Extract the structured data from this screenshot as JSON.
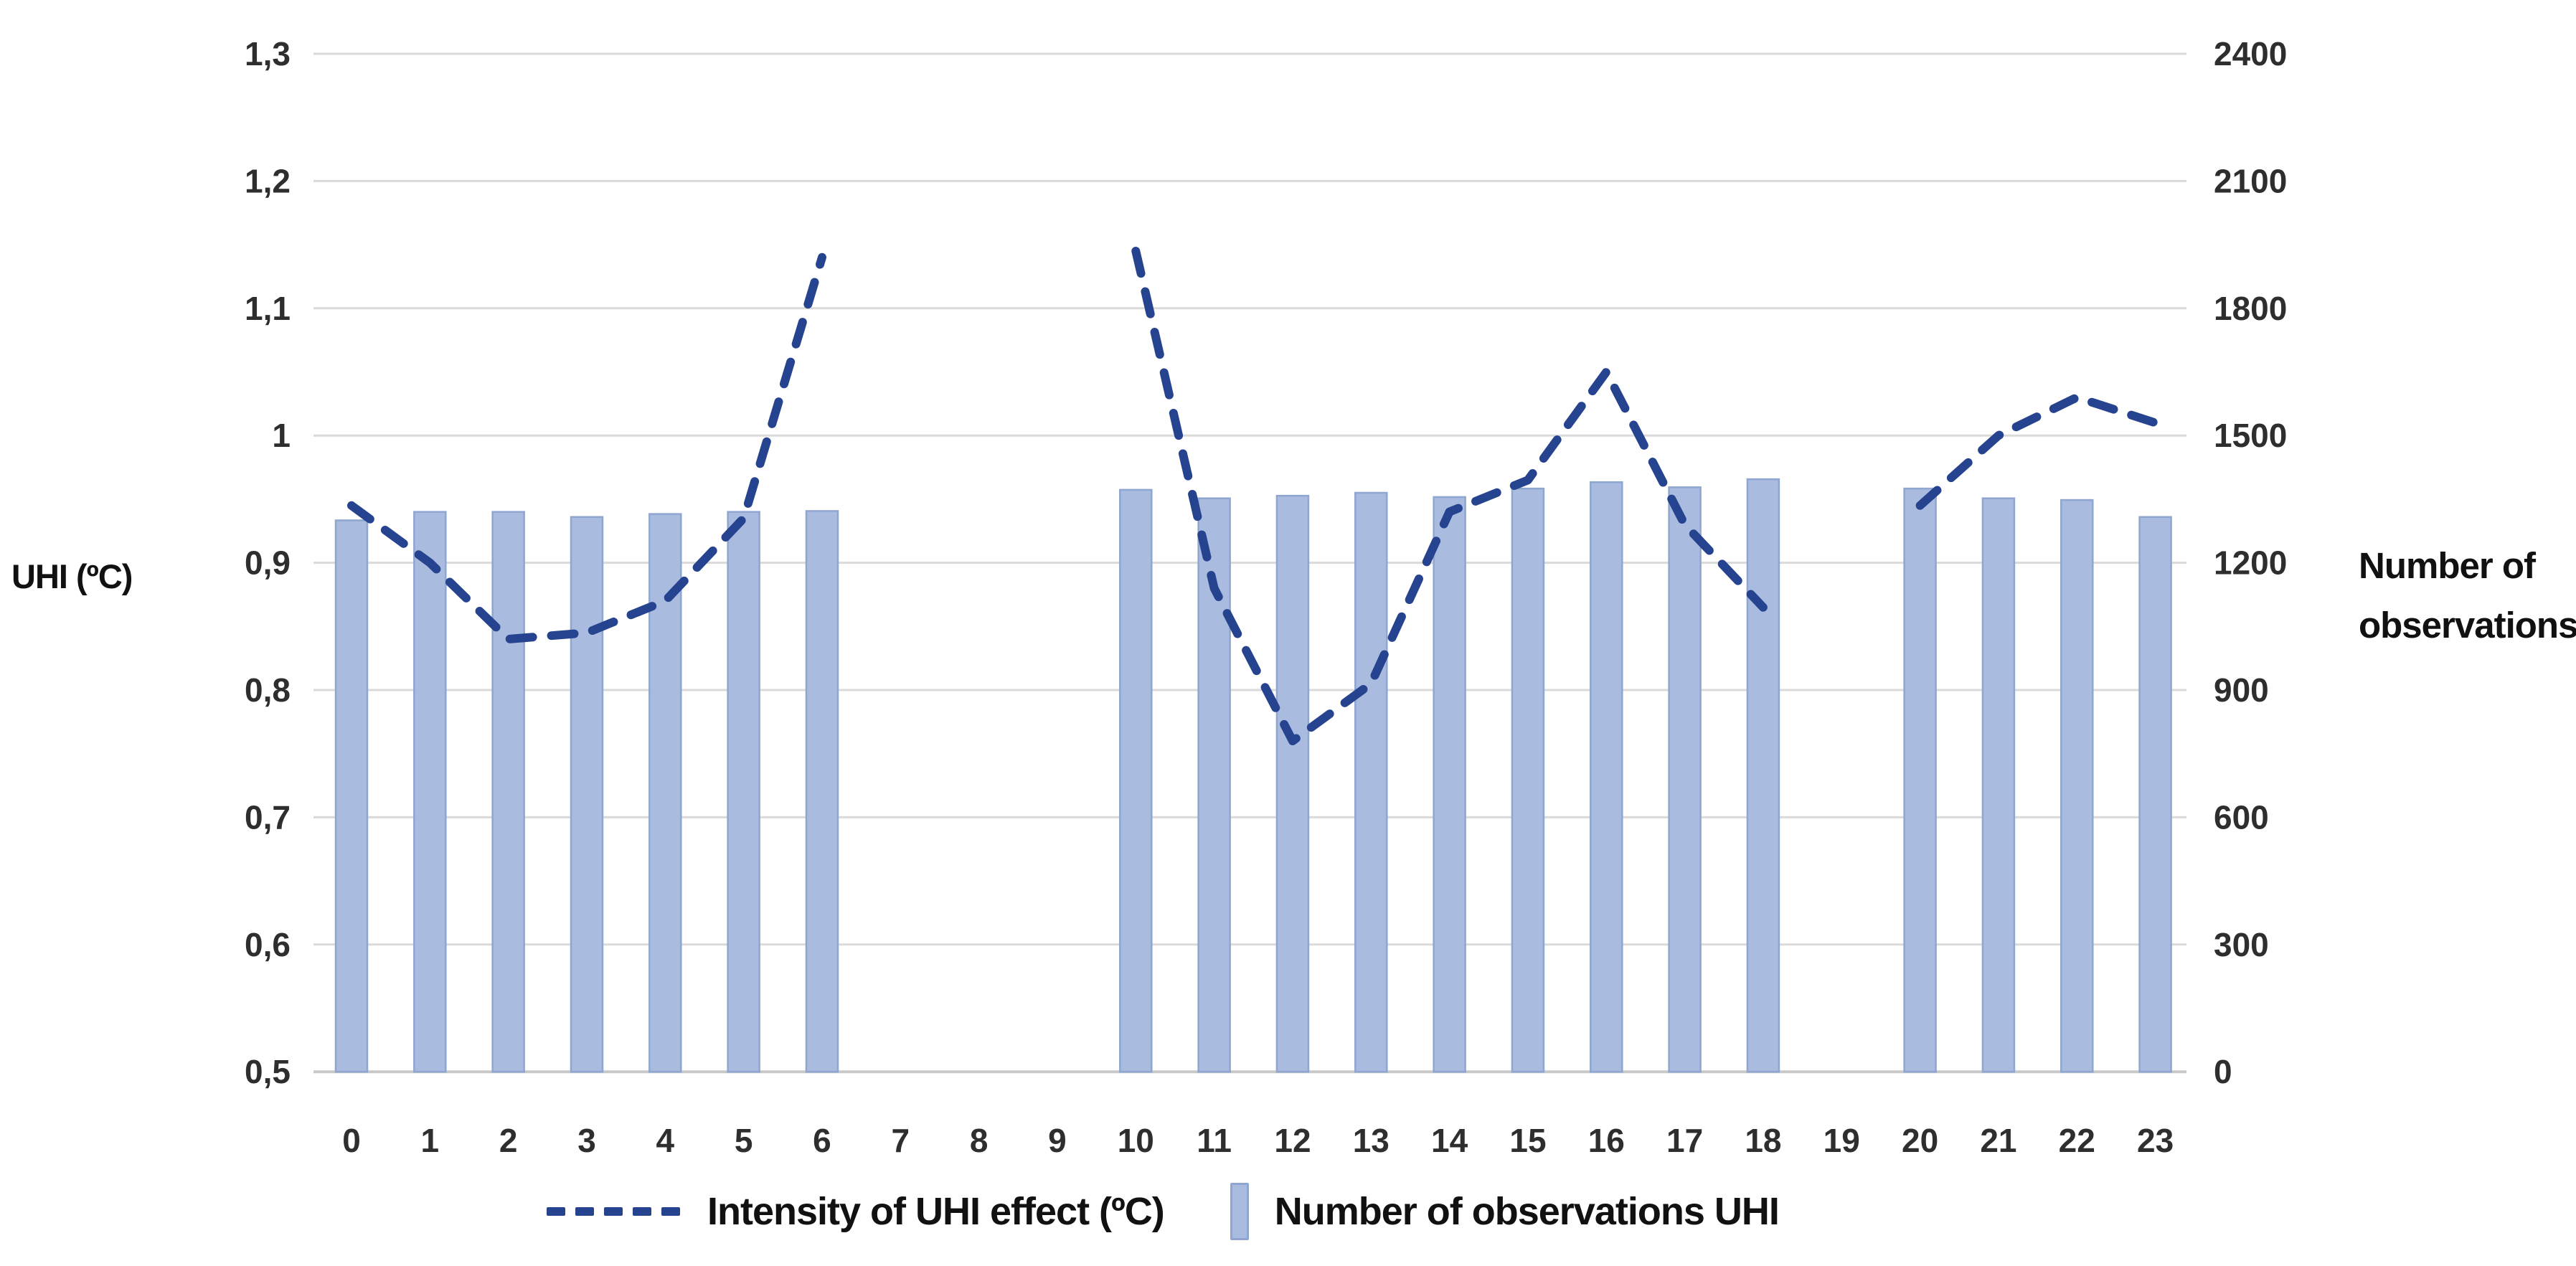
{
  "figure": {
    "left_axis_title": "UHI (ºC)",
    "right_axis_title": "Number of\nobservations"
  },
  "legend": {
    "line_label": "Intensity of UHI effect  (ºC)",
    "bar_label": "Number of observations UHI"
  },
  "chart_data": {
    "type": "bar",
    "subtype": "dual-axis bar + dashed line, hourly",
    "title": "",
    "xlabel": "",
    "categories": [
      0,
      1,
      2,
      3,
      4,
      5,
      6,
      7,
      8,
      9,
      10,
      11,
      12,
      13,
      14,
      15,
      16,
      17,
      18,
      19,
      20,
      21,
      22,
      23
    ],
    "series": [
      {
        "name": "Intensity of UHI effect (ºC)",
        "type": "line",
        "style": "dashed",
        "axis": "left",
        "values": [
          0.945,
          0.9,
          0.84,
          0.845,
          0.87,
          0.935,
          1.14,
          null,
          null,
          null,
          1.145,
          0.88,
          0.76,
          0.805,
          0.94,
          0.965,
          1.05,
          0.93,
          0.865,
          null,
          0.945,
          1.0,
          1.03,
          1.01
        ]
      },
      {
        "name": "Number of observations UHI",
        "type": "bar",
        "axis": "right",
        "values": [
          1300,
          1320,
          1320,
          1308,
          1315,
          1320,
          1322,
          null,
          null,
          null,
          1372,
          1352,
          1358,
          1365,
          1355,
          1375,
          1390,
          1378,
          1397,
          null,
          1375,
          1352,
          1348,
          1308
        ]
      }
    ],
    "left_axis": {
      "title": "UHI (ºC)",
      "tick_labels": [
        "1,3",
        "1,2",
        "1,1",
        "1",
        "0,9",
        "0,8",
        "0,7",
        "0,6",
        "0,5"
      ],
      "tick_values": [
        1.3,
        1.2,
        1.1,
        1.0,
        0.9,
        0.8,
        0.7,
        0.6,
        0.5
      ],
      "range": [
        0.5,
        1.3
      ]
    },
    "right_axis": {
      "title": "Number of observations",
      "tick_labels": [
        "2400",
        "2100",
        "1800",
        "1500",
        "1200",
        "900",
        "600",
        "300",
        "0"
      ],
      "tick_values": [
        2400,
        2100,
        1800,
        1500,
        1200,
        900,
        600,
        300,
        0
      ],
      "range": [
        0,
        2400
      ]
    },
    "grid": true,
    "legend_position": "bottom",
    "colors": {
      "line": "#26438f",
      "bar_fill": "#a9bce0",
      "bar_border": "#8fa6d1",
      "gridline": "#dadada",
      "axis_line": "#c8c8c8",
      "text": "#2e2e2e"
    }
  }
}
